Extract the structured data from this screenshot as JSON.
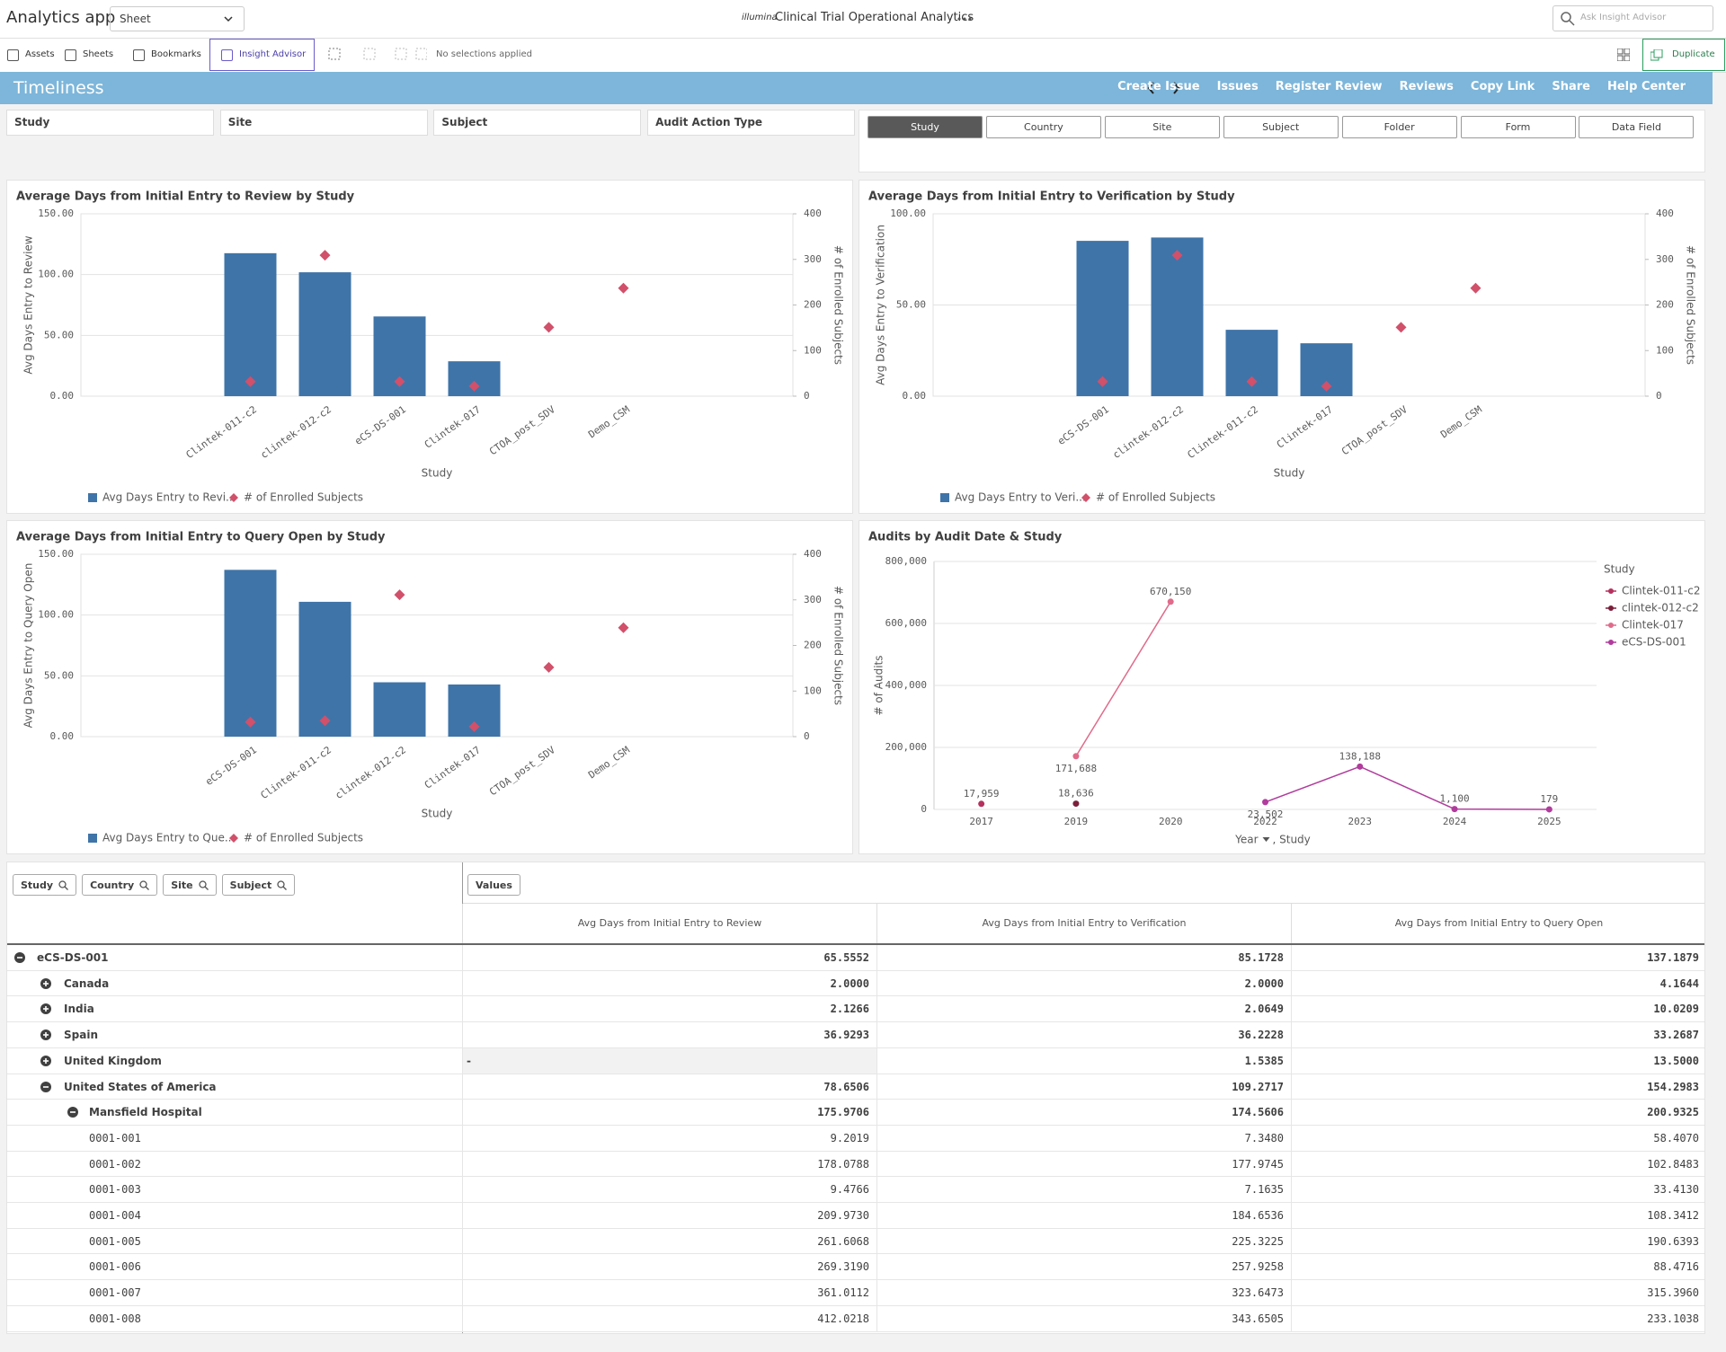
{
  "header": {
    "app_name": "Analytics app",
    "sheet_selector": "Sheet",
    "logo": "illumina",
    "title": "Clinical Trial Operational Analytics",
    "search_placeholder": "Ask Insight Advisor"
  },
  "toolbar": {
    "buttons": [
      "Assets",
      "Sheets",
      "Bookmarks",
      "Insight Advisor"
    ],
    "selections": "No selections applied",
    "duplicate": "Duplicate"
  },
  "banner": {
    "title": "Timeliness",
    "links": [
      "Create Issue",
      "Issues",
      "Register Review",
      "Reviews",
      "Copy Link",
      "Share",
      "Help Center"
    ]
  },
  "filters": [
    "Study",
    "Site",
    "Subject",
    "Audit Action Type"
  ],
  "dimension_buttons": {
    "items": [
      "Study",
      "Country",
      "Site",
      "Subject",
      "Folder",
      "Form",
      "Data Field"
    ],
    "selected": 0
  },
  "chart_data": [
    {
      "type": "combo",
      "title": "Average Days from Initial Entry to Review by Study",
      "x_label": "Study",
      "y_label": "Avg Days Entry to Review",
      "y2_label": "# of Enrolled Subjects",
      "grid": true,
      "categories": [
        "Clintek-011-c2",
        "clintek-012-c2",
        "eCS-DS-001",
        "Clintek-017",
        "CTOA_post_SDV",
        "Demo_CSM"
      ],
      "ylim": [
        0,
        150
      ],
      "yticks": [
        {
          "value": 0,
          "label": "0.00"
        },
        {
          "value": 50,
          "label": "50.00"
        },
        {
          "value": 100,
          "label": "100.00"
        },
        {
          "value": 150,
          "label": "150.00"
        }
      ],
      "y2lim": [
        0,
        400
      ],
      "y2ticks": [
        0,
        100,
        200,
        300,
        400
      ],
      "series": [
        {
          "name": "Avg Days Entry to Revi...",
          "color": "#3f74a8",
          "values": [
            117.6,
            101.9,
            65.56,
            28.7,
            null,
            null
          ]
        },
        {
          "name": "# of Enrolled Subjects",
          "color": "#d1506a",
          "axis": "y2",
          "values": [
            32,
            309,
            32,
            22,
            151,
            237
          ]
        }
      ]
    },
    {
      "type": "combo",
      "title": "Average Days from Initial Entry to Verification by Study",
      "x_label": "Study",
      "y_label": "Avg Days Entry to Verification",
      "y2_label": "# of Enrolled Subjects",
      "grid": true,
      "categories": [
        "eCS-DS-001",
        "clintek-012-c2",
        "Clintek-011-c2",
        "Clintek-017",
        "CTOA_post_SDV",
        "Demo_CSM"
      ],
      "ylim": [
        0,
        100
      ],
      "yticks": [
        {
          "value": 0,
          "label": "0.00"
        },
        {
          "value": 50,
          "label": "50.00"
        },
        {
          "value": 100,
          "label": "100.00"
        }
      ],
      "y2lim": [
        0,
        400
      ],
      "y2ticks": [
        0,
        100,
        200,
        300,
        400
      ],
      "series": [
        {
          "name": "Avg Days Entry to Veri...",
          "color": "#3f74a8",
          "values": [
            85.17,
            87,
            36.4,
            29,
            null,
            null
          ]
        },
        {
          "name": "# of Enrolled Subjects",
          "color": "#d1506a",
          "axis": "y2",
          "values": [
            32,
            309,
            32,
            22,
            151,
            237
          ]
        }
      ]
    },
    {
      "type": "combo",
      "title": "Average Days from Initial Entry to Query Open by Study",
      "x_label": "Study",
      "y_label": "Avg Days Entry to Query Open",
      "y2_label": "# of Enrolled Subjects",
      "grid": true,
      "categories": [
        "eCS-DS-001",
        "Clintek-011-c2",
        "clintek-012-c2",
        "Clintek-017",
        "CTOA_post_SDV",
        "Demo_CSM"
      ],
      "ylim": [
        0,
        150
      ],
      "yticks": [
        {
          "value": 0,
          "label": "0.00"
        },
        {
          "value": 50,
          "label": "50.00"
        },
        {
          "value": 100,
          "label": "100.00"
        },
        {
          "value": 150,
          "label": "150.00"
        }
      ],
      "y2lim": [
        0,
        400
      ],
      "y2ticks": [
        0,
        100,
        200,
        300,
        400
      ],
      "series": [
        {
          "name": "Avg Days Entry to Que...",
          "color": "#3f74a8",
          "values": [
            137.19,
            110.9,
            44.7,
            42.9,
            null,
            null
          ]
        },
        {
          "name": "# of Enrolled Subjects",
          "color": "#d1506a",
          "axis": "y2",
          "values": [
            32,
            35,
            311,
            22,
            152,
            239
          ]
        }
      ]
    },
    {
      "type": "line",
      "title": "Audits by Audit Date & Study",
      "x_label": "Year",
      "x_label_2": ", Study",
      "y_label": "# of Audits",
      "legend_title": "Study",
      "grid": true,
      "categories": [
        "2017",
        "2019",
        "2020",
        "2022",
        "2023",
        "2024",
        "2025"
      ],
      "ylim": [
        0,
        800000
      ],
      "yticks": [
        0,
        {
          "value": 200000,
          "label": "200,000"
        },
        {
          "value": 400000,
          "label": "400,000"
        },
        {
          "value": 600000,
          "label": "600,000"
        },
        {
          "value": 800000,
          "label": "800,000"
        }
      ],
      "series": [
        {
          "name": "Clintek-011-c2",
          "color": "#b5305e",
          "values": [
            17959,
            null,
            null,
            null,
            null,
            null,
            null
          ],
          "value_labels": [
            "17,959",
            null,
            null,
            null,
            null,
            null,
            null
          ]
        },
        {
          "name": "clintek-012-c2",
          "color": "#7b1e3a",
          "values": [
            null,
            18636,
            null,
            null,
            null,
            null,
            null
          ],
          "value_labels": [
            null,
            "18,636",
            null,
            null,
            null,
            null,
            null
          ]
        },
        {
          "name": "Clintek-017",
          "color": "#e06b8a",
          "values": [
            null,
            171688,
            670150,
            null,
            null,
            null,
            null
          ],
          "value_labels": [
            null,
            "171,688",
            "670,150",
            null,
            null,
            null,
            null
          ]
        },
        {
          "name": "eCS-DS-001",
          "color": "#b03c9c",
          "values": [
            null,
            null,
            null,
            23502,
            138188,
            1100,
            179
          ],
          "value_labels": [
            null,
            null,
            null,
            "23,502",
            "138,188",
            "1,100",
            "179"
          ]
        }
      ]
    }
  ],
  "table": {
    "search_fields": [
      "Study",
      "Country",
      "Site",
      "Subject"
    ],
    "values_chip": "Values",
    "columns": [
      "Avg Days from Initial Entry to Review",
      "Avg Days from Initial Entry to Verification",
      "Avg Days from Initial Entry to Query Open"
    ],
    "rows": [
      {
        "label": "eCS-DS-001",
        "level": 0,
        "expanded": true,
        "values": [
          "65.5552",
          "85.1728",
          "137.1879"
        ]
      },
      {
        "label": "Canada",
        "level": 1,
        "expanded": false,
        "values": [
          "2.0000",
          "2.0000",
          "4.1644"
        ]
      },
      {
        "label": "India",
        "level": 1,
        "expanded": false,
        "values": [
          "2.1266",
          "2.0649",
          "10.0209"
        ]
      },
      {
        "label": "Spain",
        "level": 1,
        "expanded": false,
        "values": [
          "36.9293",
          "36.2228",
          "33.2687"
        ]
      },
      {
        "label": "United Kingdom",
        "level": 1,
        "expanded": false,
        "values": [
          "-",
          "1.5385",
          "13.5000"
        ]
      },
      {
        "label": "United States of America",
        "level": 1,
        "expanded": true,
        "values": [
          "78.6506",
          "109.2717",
          "154.2983"
        ]
      },
      {
        "label": "Mansfield Hospital",
        "level": 2,
        "expanded": true,
        "values": [
          "175.9706",
          "174.5606",
          "200.9325"
        ]
      },
      {
        "label": "0001-001",
        "level": 3,
        "values": [
          "9.2019",
          "7.3480",
          "58.4070"
        ]
      },
      {
        "label": "0001-002",
        "level": 3,
        "values": [
          "178.0788",
          "177.9745",
          "102.8483"
        ]
      },
      {
        "label": "0001-003",
        "level": 3,
        "values": [
          "9.4766",
          "7.1635",
          "33.4130"
        ]
      },
      {
        "label": "0001-004",
        "level": 3,
        "values": [
          "209.9730",
          "184.6536",
          "108.3412"
        ]
      },
      {
        "label": "0001-005",
        "level": 3,
        "values": [
          "261.6068",
          "225.3225",
          "190.6393"
        ]
      },
      {
        "label": "0001-006",
        "level": 3,
        "values": [
          "269.3190",
          "257.9258",
          "88.4716"
        ]
      },
      {
        "label": "0001-007",
        "level": 3,
        "values": [
          "361.0112",
          "323.6473",
          "315.3960"
        ]
      },
      {
        "label": "0001-008",
        "level": 3,
        "values": [
          "412.0218",
          "343.6505",
          "233.1038"
        ]
      }
    ]
  }
}
